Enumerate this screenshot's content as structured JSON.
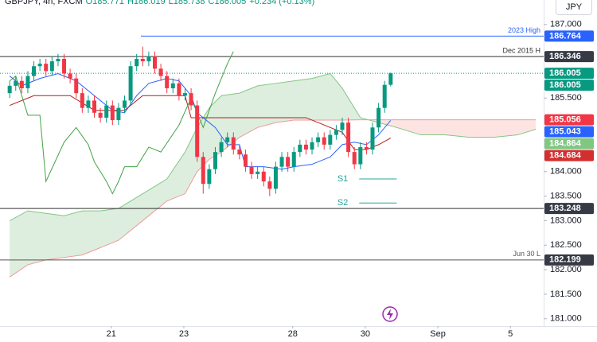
{
  "chart_data": {
    "type": "candlestick",
    "header": [
      "GBPJPY, 4h, FXCM",
      "O185.771",
      "H186.019",
      "L185.738",
      "C186.005",
      "+0.234 (+0.13%)"
    ],
    "currency": "JPY",
    "up_color": "#089981",
    "down_color": "#f23645",
    "xlim": [
      -1.6,
      88.3
    ],
    "ylim": [
      180.85,
      187.5
    ],
    "xticks": [
      {
        "value": 16.8,
        "label": "21"
      },
      {
        "value": 28.8,
        "label": "23"
      },
      {
        "value": 46.8,
        "label": "28"
      },
      {
        "value": 58.8,
        "label": "30"
      },
      {
        "value": 70.8,
        "label": "Sep"
      },
      {
        "value": 82.8,
        "label": "5"
      }
    ],
    "yticks": [
      {
        "value": 187,
        "label": "187.000"
      },
      {
        "value": 185.5,
        "label": "185.500"
      },
      {
        "value": 184,
        "label": "184.000"
      },
      {
        "value": 183.5,
        "label": "183.500"
      },
      {
        "value": 183,
        "label": "183.000"
      },
      {
        "value": 182.5,
        "label": "182.500"
      },
      {
        "value": 182,
        "label": "182.000"
      },
      {
        "value": 181.5,
        "label": "181.500"
      },
      {
        "value": 181,
        "label": "181.000"
      }
    ],
    "open": [
      185.6,
      185.75,
      185.85,
      185.7,
      185.95,
      186.15,
      186.2,
      186.05,
      186.25,
      186.3,
      186.0,
      185.9,
      185.6,
      185.3,
      185.45,
      185.2,
      185.1,
      185.35,
      185.05,
      185.3,
      185.45,
      186.15,
      186.3,
      186.25,
      186.35,
      186.1,
      185.95,
      185.7,
      185.8,
      185.55,
      185.6,
      185.35,
      184.3,
      183.75,
      184.05,
      184.4,
      184.6,
      184.7,
      184.45,
      184.35,
      184.1,
      183.95,
      184.0,
      183.8,
      183.65,
      184.1,
      184.3,
      184.1,
      184.4,
      184.55,
      184.45,
      184.6,
      184.7,
      184.55,
      184.75,
      184.85,
      185.0,
      184.4,
      184.15,
      184.5,
      184.45,
      184.9,
      185.3,
      185.771
    ],
    "high": [
      185.85,
      185.95,
      185.95,
      186.05,
      186.25,
      186.3,
      186.3,
      186.35,
      186.4,
      186.4,
      186.1,
      186.0,
      185.7,
      185.55,
      185.55,
      185.3,
      185.45,
      185.45,
      185.4,
      185.55,
      186.25,
      186.4,
      186.55,
      186.45,
      186.45,
      186.2,
      186.05,
      185.9,
      185.9,
      185.7,
      185.7,
      185.45,
      184.4,
      184.15,
      184.5,
      184.7,
      184.8,
      184.8,
      184.55,
      184.45,
      184.2,
      184.1,
      184.1,
      183.9,
      184.2,
      184.4,
      184.4,
      184.5,
      184.65,
      184.65,
      184.7,
      184.8,
      184.8,
      184.85,
      184.95,
      185.1,
      185.1,
      184.5,
      184.6,
      184.6,
      185.0,
      185.4,
      185.85,
      186.019
    ],
    "low": [
      185.5,
      185.65,
      185.6,
      185.6,
      185.85,
      186.05,
      185.95,
      185.95,
      186.15,
      185.9,
      185.8,
      185.5,
      185.2,
      185.2,
      185.1,
      185.0,
      185.0,
      184.95,
      184.95,
      185.2,
      185.35,
      186.05,
      186.15,
      186.15,
      186.0,
      185.85,
      185.6,
      185.6,
      185.45,
      185.45,
      185.25,
      184.2,
      183.55,
      183.65,
      183.95,
      184.3,
      184.5,
      184.35,
      184.25,
      184.0,
      183.85,
      183.85,
      183.7,
      183.5,
      183.55,
      184.0,
      184.0,
      184.0,
      184.3,
      184.35,
      184.35,
      184.5,
      184.45,
      184.45,
      184.65,
      184.75,
      184.3,
      184.05,
      184.05,
      184.35,
      184.35,
      184.8,
      185.2,
      185.738
    ],
    "close": [
      185.75,
      185.85,
      185.7,
      185.95,
      186.15,
      186.2,
      186.05,
      186.25,
      186.3,
      186.0,
      185.9,
      185.6,
      185.3,
      185.45,
      185.2,
      185.1,
      185.35,
      185.05,
      185.3,
      185.45,
      186.15,
      186.3,
      186.25,
      186.35,
      186.1,
      185.95,
      185.7,
      185.8,
      185.55,
      185.6,
      185.35,
      184.3,
      183.75,
      184.05,
      184.4,
      184.6,
      184.7,
      184.45,
      184.35,
      184.1,
      183.95,
      184.0,
      183.8,
      183.65,
      184.1,
      184.3,
      184.1,
      184.4,
      184.55,
      184.45,
      184.6,
      184.7,
      184.55,
      184.75,
      184.85,
      185.0,
      184.4,
      184.15,
      184.5,
      184.45,
      184.9,
      185.3,
      185.77,
      186.005
    ],
    "cloud": {
      "x": [
        0,
        3,
        6,
        9,
        12,
        15,
        18,
        22,
        26,
        29,
        31,
        33,
        35,
        38,
        41,
        44,
        47,
        50,
        53,
        55,
        58,
        61,
        64,
        68,
        72,
        76,
        80,
        84,
        87
      ],
      "span_a": {
        "color": "#81c784",
        "values": [
          183.0,
          183.2,
          183.15,
          183.1,
          183.2,
          183.2,
          183.25,
          183.55,
          183.85,
          184.4,
          184.9,
          185.3,
          185.55,
          185.6,
          185.75,
          185.8,
          185.85,
          185.9,
          186.0,
          185.7,
          185.1,
          185.0,
          184.9,
          184.75,
          184.75,
          184.7,
          184.7,
          184.75,
          184.864
        ]
      },
      "span_b": {
        "color": "#ef9a9a",
        "values": [
          181.85,
          182.1,
          182.2,
          182.25,
          182.3,
          182.45,
          182.6,
          183.0,
          183.4,
          183.55,
          184.0,
          184.25,
          184.4,
          184.7,
          184.9,
          185.0,
          185.05,
          185.05,
          185.05,
          185.05,
          185.056,
          185.056,
          185.056,
          185.056,
          185.056,
          185.056,
          185.056,
          185.056,
          185.056
        ]
      },
      "up_fill": "#43a047",
      "down_fill": "#f44336"
    },
    "lines": [
      {
        "color": "#2962ff",
        "x": [
          0,
          2,
          5,
          8,
          11,
          14,
          17,
          19,
          21,
          23,
          26,
          28,
          30,
          31,
          34,
          36,
          38,
          39,
          42,
          45,
          47,
          50,
          53,
          55,
          57,
          59,
          61,
          63
        ],
        "values": [
          185.95,
          185.75,
          185.9,
          186.0,
          185.85,
          185.55,
          185.25,
          185.2,
          185.55,
          185.8,
          185.9,
          185.85,
          185.55,
          185.2,
          184.9,
          184.55,
          184.55,
          184.1,
          184.1,
          184.05,
          184.1,
          184.15,
          184.3,
          184.55,
          184.6,
          184.55,
          184.75,
          185.043
        ]
      },
      {
        "color": "#b71c1c",
        "x": [
          0,
          4,
          10,
          14,
          19,
          22,
          29,
          30,
          49,
          52,
          55,
          57,
          59,
          61,
          63
        ],
        "values": [
          185.35,
          185.55,
          185.55,
          185.25,
          185.25,
          185.55,
          185.55,
          185.1,
          185.1,
          184.95,
          184.8,
          184.45,
          184.45,
          184.55,
          184.684
        ]
      },
      {
        "color": "#43a047",
        "x": [
          0,
          1,
          3,
          5,
          6,
          9,
          11,
          13,
          14,
          16,
          17,
          18,
          19,
          21,
          23,
          25,
          28,
          30,
          32,
          34,
          36,
          37
        ],
        "values": [
          185.85,
          185.95,
          185.15,
          185.15,
          183.8,
          184.6,
          184.9,
          184.55,
          184.2,
          183.8,
          183.55,
          183.8,
          184.1,
          184.1,
          184.5,
          184.4,
          184.95,
          185.5,
          184.9,
          185.6,
          186.2,
          186.45
        ]
      }
    ],
    "levels": [
      {
        "value": 186.764,
        "color": "#2962ff",
        "label": "2023 High",
        "x_start": 21.7
      },
      {
        "value": 186.346,
        "color": "#333333",
        "label": "Dec 2015 H"
      },
      {
        "value": 186.005,
        "color": "#089981",
        "dashed": true
      },
      {
        "value": 183.248,
        "color": "#333333"
      },
      {
        "value": 182.199,
        "color": "#555555",
        "label": "Jun 30 L"
      },
      {
        "value": 183.85,
        "color": "#26a69a",
        "label": "S1",
        "x_start": 57.8,
        "x_end": 64
      },
      {
        "value": 183.36,
        "color": "#26a69a",
        "label": "S2",
        "x_start": 57.8,
        "x_end": 64
      }
    ],
    "tags": [
      {
        "value": 186.764,
        "color": "#2962ff"
      },
      {
        "value": 186.346,
        "color": "#363a45"
      },
      {
        "value": 186.005,
        "color": "#089981"
      },
      {
        "value": 186.005,
        "color": "#089981"
      },
      {
        "value": 185.056,
        "color": "#f23645"
      },
      {
        "value": 185.043,
        "color": "#2962ff"
      },
      {
        "value": 184.864,
        "color": "#81c784"
      },
      {
        "value": 184.684,
        "color": "#d32f2f"
      },
      {
        "value": 183.248,
        "color": "#363a45"
      },
      {
        "value": 182.199,
        "color": "#363a45"
      }
    ]
  }
}
